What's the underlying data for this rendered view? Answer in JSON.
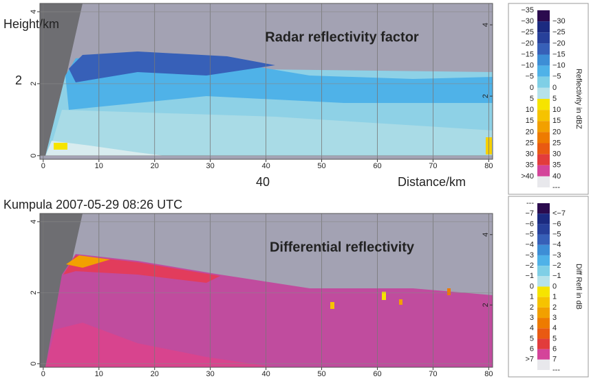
{
  "caption": "Kumpula 2007-05-29 08:26 UTC",
  "chart_data": [
    {
      "type": "rhi",
      "title": "Radar reflectivity factor",
      "xlabel": "Distance/km",
      "ylabel": "Height/km",
      "annotations": [
        "2",
        "40"
      ],
      "xlim": [
        -0.6,
        80.7
      ],
      "xticks": [
        0,
        10,
        20,
        30,
        40,
        50,
        60,
        70,
        80
      ],
      "ylim": [
        -0.1,
        4.23
      ],
      "yticks": [
        0,
        2,
        4
      ],
      "y2lim": [
        0.23,
        4.6
      ],
      "y2ticks": [
        2,
        4
      ],
      "grid": true,
      "colorbar": {
        "label": "Reflectivity in dBZ",
        "rows": [
          {
            "low": "−35",
            "high": "−30",
            "color": "#2b0b4e"
          },
          {
            "low": "−30",
            "high": "−25",
            "color": "#1b2a80"
          },
          {
            "low": "−25",
            "high": "−20",
            "color": "#27409a"
          },
          {
            "low": "−20",
            "high": "−15",
            "color": "#3760b8"
          },
          {
            "low": "−15",
            "high": "−10",
            "color": "#3d8ed6"
          },
          {
            "low": "−10",
            "high": "−5",
            "color": "#4fb2e8"
          },
          {
            "low": "−5",
            "high": "0",
            "color": "#7fcfe6"
          },
          {
            "low": "0",
            "high": "5",
            "color": "#b6e2ea"
          },
          {
            "low": "5",
            "high": "10",
            "color": "#f6e400"
          },
          {
            "low": "10",
            "high": "15",
            "color": "#f6c300"
          },
          {
            "low": "15",
            "high": "20",
            "color": "#f2a000"
          },
          {
            "low": "20",
            "high": "25",
            "color": "#ee7b00"
          },
          {
            "low": "25",
            "high": "30",
            "color": "#e95a12"
          },
          {
            "low": "30",
            "high": "35",
            "color": "#e23c3c"
          },
          {
            "low": "35",
            "high": "40",
            "color": "#d4449a"
          },
          {
            "low": ">40",
            "high": "---",
            "color": "#e8e8ec"
          }
        ]
      }
    },
    {
      "type": "rhi",
      "title": "Differential reflectivity",
      "xlim": [
        -0.6,
        80.7
      ],
      "xticks": [
        0,
        10,
        20,
        30,
        40,
        50,
        60,
        70,
        80
      ],
      "ylim": [
        -0.1,
        4.23
      ],
      "yticks": [
        0,
        2,
        4
      ],
      "y2lim": [
        0.23,
        4.6
      ],
      "y2ticks": [
        2,
        4
      ],
      "grid": true,
      "colorbar": {
        "label": "Diff Refl in dB",
        "rows": [
          {
            "low": "---",
            "high": "<−7",
            "color": "#2b0b4e"
          },
          {
            "low": "−7",
            "high": "−6",
            "color": "#1b2a80"
          },
          {
            "low": "−6",
            "high": "−5",
            "color": "#27409a"
          },
          {
            "low": "−5",
            "high": "−4",
            "color": "#3760b8"
          },
          {
            "low": "−4",
            "high": "−3",
            "color": "#3d8ed6"
          },
          {
            "low": "−3",
            "high": "−2",
            "color": "#4fb2e8"
          },
          {
            "low": "−2",
            "high": "−1",
            "color": "#7fcfe6"
          },
          {
            "low": "−1",
            "high": "0",
            "color": "#b6e2ea"
          },
          {
            "low": "0",
            "high": "1",
            "color": "#f6e400"
          },
          {
            "low": "1",
            "high": "2",
            "color": "#f6c300"
          },
          {
            "low": "2",
            "high": "3",
            "color": "#f2a000"
          },
          {
            "low": "3",
            "high": "4",
            "color": "#ee7b00"
          },
          {
            "low": "4",
            "high": "5",
            "color": "#e95a12"
          },
          {
            "low": "5",
            "high": "6",
            "color": "#e23c3c"
          },
          {
            "low": "6",
            "high": "7",
            "color": "#d4449a"
          },
          {
            "low": ">7",
            "high": "---",
            "color": "#e8e8ec"
          }
        ]
      }
    }
  ]
}
